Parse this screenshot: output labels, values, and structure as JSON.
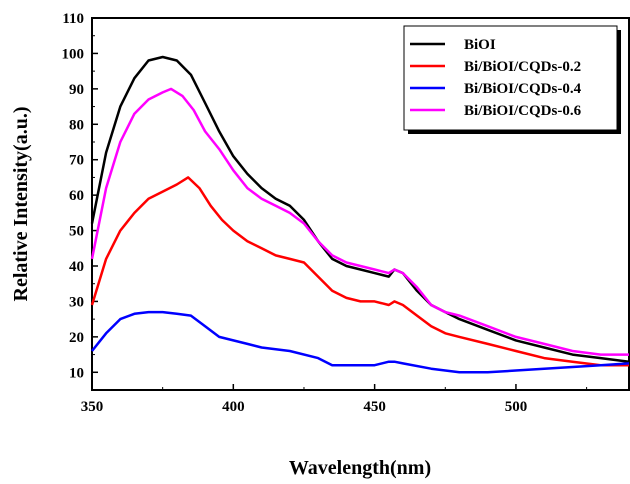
{
  "chart_data": {
    "type": "line",
    "xlabel": "Wavelength(nm)",
    "ylabel": "Relative Intensity(a.u.)",
    "xlim": [
      350,
      540
    ],
    "ylim": [
      5,
      110
    ],
    "x_ticks": [
      350,
      400,
      450,
      500
    ],
    "y_ticks": [
      10,
      20,
      30,
      40,
      50,
      60,
      70,
      80,
      90,
      100,
      110
    ],
    "legend_position": "top-right",
    "grid": false,
    "series": [
      {
        "name": "BiOI",
        "color": "#000000",
        "x": [
          350,
          355,
          360,
          365,
          370,
          375,
          380,
          385,
          390,
          395,
          400,
          405,
          410,
          415,
          420,
          425,
          430,
          435,
          440,
          445,
          450,
          455,
          457,
          460,
          465,
          470,
          475,
          480,
          490,
          500,
          510,
          520,
          530,
          540
        ],
        "y": [
          52,
          72,
          85,
          93,
          98,
          99,
          98,
          94,
          86,
          78,
          71,
          66,
          62,
          59,
          57,
          53,
          47,
          42,
          40,
          39,
          38,
          37,
          39,
          38,
          33,
          29,
          27,
          25,
          22,
          19,
          17,
          15,
          14,
          13
        ]
      },
      {
        "name": "Bi/BiOI/CQDs-0.2",
        "color": "#ff0000",
        "x": [
          350,
          355,
          360,
          365,
          370,
          375,
          380,
          384,
          388,
          392,
          396,
          400,
          405,
          410,
          415,
          420,
          425,
          430,
          435,
          440,
          445,
          450,
          455,
          457,
          460,
          465,
          470,
          475,
          480,
          490,
          500,
          510,
          520,
          530,
          540
        ],
        "y": [
          29,
          42,
          50,
          55,
          59,
          61,
          63,
          65,
          62,
          57,
          53,
          50,
          47,
          45,
          43,
          42,
          41,
          37,
          33,
          31,
          30,
          30,
          29,
          30,
          29,
          26,
          23,
          21,
          20,
          18,
          16,
          14,
          13,
          12,
          12
        ]
      },
      {
        "name": "Bi/BiOI/CQDs-0.4",
        "color": "#0000ff",
        "x": [
          350,
          355,
          360,
          365,
          370,
          375,
          380,
          385,
          390,
          395,
          400,
          405,
          410,
          420,
          430,
          435,
          440,
          450,
          455,
          457,
          460,
          470,
          480,
          490,
          500,
          510,
          520,
          530,
          540
        ],
        "y": [
          16,
          21,
          25,
          26.5,
          27,
          27,
          26.5,
          26,
          23,
          20,
          19,
          18,
          17,
          16,
          14,
          12,
          12,
          12,
          13,
          13,
          12.5,
          11,
          10,
          10,
          10.5,
          11,
          11.5,
          12,
          12.5
        ]
      },
      {
        "name": "Bi/BiOI/CQDs-0.6",
        "color": "#ff00ff",
        "x": [
          350,
          355,
          360,
          365,
          370,
          375,
          378,
          382,
          386,
          390,
          395,
          400,
          405,
          410,
          415,
          420,
          425,
          430,
          435,
          440,
          445,
          450,
          455,
          457,
          460,
          465,
          470,
          475,
          480,
          490,
          500,
          510,
          520,
          530,
          540
        ],
        "y": [
          42,
          62,
          75,
          83,
          87,
          89,
          90,
          88,
          84,
          78,
          73,
          67,
          62,
          59,
          57,
          55,
          52,
          47,
          43,
          41,
          40,
          39,
          38,
          39,
          38,
          34,
          29,
          27,
          26,
          23,
          20,
          18,
          16,
          15,
          15
        ]
      }
    ]
  }
}
